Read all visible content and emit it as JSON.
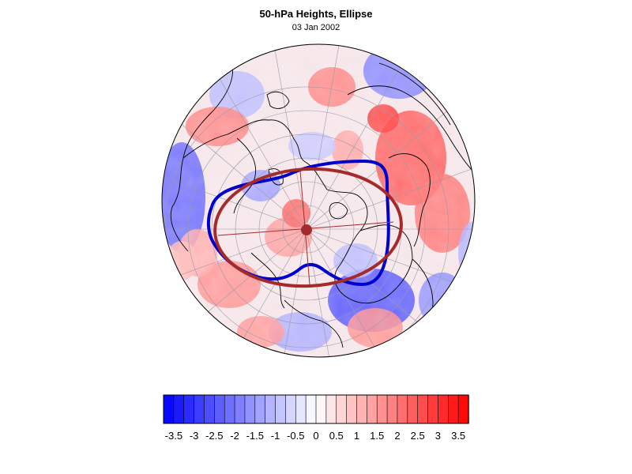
{
  "title": "50-hPa Heights, Ellipse",
  "date": "03 Jan 2002",
  "colorbar": {
    "tick_labels": [
      "-3.5",
      "-3",
      "-2.5",
      "-2",
      "-1.5",
      "-1",
      "-0.5",
      "0",
      "0.5",
      "1",
      "1.5",
      "2",
      "2.5",
      "3",
      "3.5"
    ],
    "min": -3.75,
    "max": 3.75,
    "step": 0.25,
    "negative_color": "#0000ff",
    "positive_color": "#ff0000"
  },
  "map": {
    "projection": "north-polar-stereographic",
    "contour_color": "#0000cc",
    "ellipse_color": "#a52a2a",
    "center_marker_color": "#a52a2a"
  }
}
